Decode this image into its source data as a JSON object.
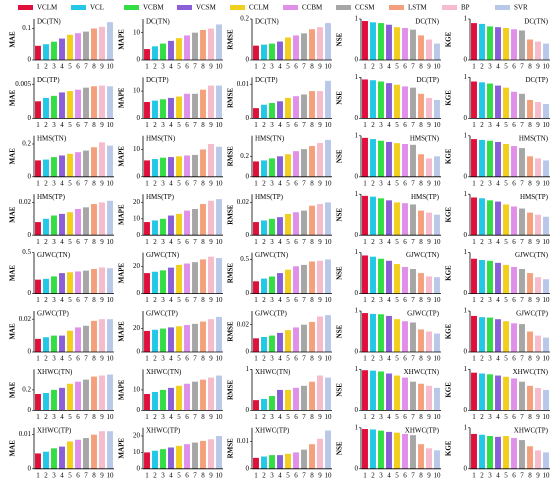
{
  "legend": [
    {
      "name": "VCLM",
      "color": "#e0103c"
    },
    {
      "name": "VCL",
      "color": "#22c8e6"
    },
    {
      "name": "VCBM",
      "color": "#33dd44"
    },
    {
      "name": "VCSM",
      "color": "#8a5fd8"
    },
    {
      "name": "CCLM",
      "color": "#f2cf1d"
    },
    {
      "name": "CCBM",
      "color": "#e090e8"
    },
    {
      "name": "CCSM",
      "color": "#a6a6a6"
    },
    {
      "name": "LSTM",
      "color": "#f4a07c"
    },
    {
      "name": "BP",
      "color": "#f6bccb"
    },
    {
      "name": "SVR",
      "color": "#b9c8e8"
    }
  ],
  "chart_data": [
    {
      "type": "bar",
      "title": "DC(TN)",
      "y_label": "MAE",
      "categories": [
        1,
        2,
        3,
        4,
        5,
        6,
        7,
        8,
        9,
        10
      ],
      "values": [
        0.045,
        0.05,
        0.058,
        0.068,
        0.08,
        0.085,
        0.09,
        0.1,
        0.105,
        0.12
      ],
      "ylim": [
        0,
        0.13
      ],
      "yticks": [
        0,
        0.1
      ]
    },
    {
      "type": "bar",
      "title": "DC(TN)",
      "y_label": "MAPE",
      "categories": [
        1,
        2,
        3,
        4,
        5,
        6,
        7,
        8,
        9,
        10
      ],
      "values": [
        4,
        5,
        6,
        7,
        8,
        9,
        10,
        11,
        11.5,
        13
      ],
      "ylim": [
        0,
        15
      ],
      "yticks": [
        0,
        10
      ]
    },
    {
      "type": "bar",
      "title": "DC(TN)",
      "y_label": "RMSE",
      "categories": [
        1,
        2,
        3,
        4,
        5,
        6,
        7,
        8,
        9,
        10
      ],
      "values": [
        0.07,
        0.075,
        0.08,
        0.09,
        0.11,
        0.12,
        0.13,
        0.15,
        0.16,
        0.18
      ],
      "ylim": [
        0,
        0.2
      ],
      "yticks": [
        0,
        0.2
      ]
    },
    {
      "type": "bar",
      "title": "DC(TN)",
      "y_label": "NSE",
      "categories": [
        1,
        2,
        3,
        4,
        5,
        6,
        7,
        8,
        9,
        10
      ],
      "values": [
        0.95,
        0.92,
        0.9,
        0.86,
        0.8,
        0.78,
        0.74,
        0.6,
        0.5,
        0.4
      ],
      "ylim": [
        0,
        1
      ],
      "yticks": [
        0,
        1
      ]
    },
    {
      "type": "bar",
      "title": "DC(TN)",
      "y_label": "KGE",
      "categories": [
        1,
        2,
        3,
        4,
        5,
        6,
        7,
        8,
        9,
        10
      ],
      "values": [
        0.9,
        0.88,
        0.82,
        0.8,
        0.78,
        0.75,
        0.72,
        0.5,
        0.45,
        0.4
      ],
      "ylim": [
        0,
        1
      ],
      "yticks": [
        0,
        1
      ]
    },
    {
      "type": "bar",
      "title": "DC(TP)",
      "y_label": "MAE",
      "categories": [
        1,
        2,
        3,
        4,
        5,
        6,
        7,
        8,
        9,
        10
      ],
      "values": [
        0.0025,
        0.003,
        0.0033,
        0.0038,
        0.004,
        0.0042,
        0.0045,
        0.0047,
        0.0048,
        0.0047
      ],
      "ylim": [
        0,
        0.006
      ],
      "yticks": [
        0,
        0.005
      ]
    },
    {
      "type": "bar",
      "title": "DC(TP)",
      "y_label": "MAPE",
      "categories": [
        1,
        2,
        3,
        4,
        5,
        6,
        7,
        8,
        9,
        10
      ],
      "values": [
        6,
        6.5,
        7,
        7.5,
        8,
        9,
        9,
        10.5,
        12,
        12
      ],
      "ylim": [
        0,
        15
      ],
      "yticks": [
        0,
        10
      ]
    },
    {
      "type": "bar",
      "title": "DC(TP)",
      "y_label": "RMSE",
      "categories": [
        1,
        2,
        3,
        4,
        5,
        6,
        7,
        8,
        9,
        10
      ],
      "values": [
        0.003,
        0.004,
        0.0045,
        0.005,
        0.006,
        0.0065,
        0.007,
        0.008,
        0.008,
        0.011
      ],
      "ylim": [
        0,
        0.012
      ],
      "yticks": [
        0,
        0.01
      ]
    },
    {
      "type": "bar",
      "title": "DC(TP)",
      "y_label": "NSE",
      "categories": [
        1,
        2,
        3,
        4,
        5,
        6,
        7,
        8,
        9,
        10
      ],
      "values": [
        0.95,
        0.93,
        0.9,
        0.86,
        0.82,
        0.78,
        0.75,
        0.6,
        0.5,
        0.45
      ],
      "ylim": [
        0,
        1
      ],
      "yticks": [
        0,
        1
      ]
    },
    {
      "type": "bar",
      "title": "DC(TP)",
      "y_label": "KGE",
      "categories": [
        1,
        2,
        3,
        4,
        5,
        6,
        7,
        8,
        9,
        10
      ],
      "values": [
        0.9,
        0.88,
        0.85,
        0.8,
        0.75,
        0.65,
        0.6,
        0.45,
        0.4,
        0.35
      ],
      "ylim": [
        0,
        1
      ],
      "yticks": [
        0,
        1
      ]
    },
    {
      "type": "bar",
      "title": "HMS(TN)",
      "y_label": "MAE",
      "categories": [
        1,
        2,
        3,
        4,
        5,
        6,
        7,
        8,
        9,
        10
      ],
      "values": [
        0.1,
        0.105,
        0.12,
        0.13,
        0.14,
        0.15,
        0.16,
        0.18,
        0.21,
        0.19
      ],
      "ylim": [
        0,
        0.25
      ],
      "yticks": [
        0,
        0.2
      ]
    },
    {
      "type": "bar",
      "title": "HMS(TN)",
      "y_label": "MAPE",
      "categories": [
        1,
        2,
        3,
        4,
        5,
        6,
        7,
        8,
        9,
        10
      ],
      "values": [
        6,
        6.5,
        7,
        7.2,
        7.5,
        7.8,
        8,
        10,
        12,
        11
      ],
      "ylim": [
        0,
        15
      ],
      "yticks": [
        0,
        10
      ]
    },
    {
      "type": "bar",
      "title": "HMS(TN)",
      "y_label": "RMSE",
      "categories": [
        1,
        2,
        3,
        4,
        5,
        6,
        7,
        8,
        9,
        10
      ],
      "values": [
        0.15,
        0.16,
        0.18,
        0.2,
        0.22,
        0.25,
        0.27,
        0.3,
        0.33,
        0.36
      ],
      "ylim": [
        0,
        0.4
      ],
      "yticks": [
        0,
        0.2
      ]
    },
    {
      "type": "bar",
      "title": "HMS(TN)",
      "y_label": "NSE",
      "categories": [
        1,
        2,
        3,
        4,
        5,
        6,
        7,
        8,
        9,
        10
      ],
      "values": [
        0.95,
        0.92,
        0.88,
        0.85,
        0.82,
        0.8,
        0.78,
        0.55,
        0.45,
        0.5
      ],
      "ylim": [
        0,
        1
      ],
      "yticks": [
        0,
        1
      ]
    },
    {
      "type": "bar",
      "title": "HMS(TN)",
      "y_label": "KGE",
      "categories": [
        1,
        2,
        3,
        4,
        5,
        6,
        7,
        8,
        9,
        10
      ],
      "values": [
        0.92,
        0.9,
        0.88,
        0.85,
        0.8,
        0.75,
        0.7,
        0.5,
        0.45,
        0.4
      ],
      "ylim": [
        0,
        1
      ],
      "yticks": [
        0,
        1
      ]
    },
    {
      "type": "bar",
      "title": "HMS(TP)",
      "y_label": "MAE",
      "categories": [
        1,
        2,
        3,
        4,
        5,
        6,
        7,
        8,
        9,
        10
      ],
      "values": [
        0.008,
        0.01,
        0.012,
        0.013,
        0.014,
        0.016,
        0.017,
        0.019,
        0.02,
        0.021
      ],
      "ylim": [
        0,
        0.025
      ],
      "yticks": [
        0,
        0.02
      ]
    },
    {
      "type": "bar",
      "title": "HMS(TP)",
      "y_label": "MAPE",
      "categories": [
        1,
        2,
        3,
        4,
        5,
        6,
        7,
        8,
        9,
        10
      ],
      "values": [
        8,
        9,
        10,
        12,
        13,
        15,
        16,
        19,
        21,
        22
      ],
      "ylim": [
        0,
        25
      ],
      "yticks": [
        0,
        10,
        20
      ]
    },
    {
      "type": "bar",
      "title": "HMS(TP)",
      "y_label": "RMSE",
      "categories": [
        1,
        2,
        3,
        4,
        5,
        6,
        7,
        8,
        9,
        10
      ],
      "values": [
        0.008,
        0.009,
        0.01,
        0.011,
        0.013,
        0.014,
        0.015,
        0.018,
        0.019,
        0.02
      ],
      "ylim": [
        0,
        0.025
      ],
      "yticks": [
        0,
        0.02
      ]
    },
    {
      "type": "bar",
      "title": "HMS(TP)",
      "y_label": "NSE",
      "categories": [
        1,
        2,
        3,
        4,
        5,
        6,
        7,
        8,
        9,
        10
      ],
      "values": [
        0.96,
        0.94,
        0.9,
        0.85,
        0.8,
        0.78,
        0.75,
        0.6,
        0.55,
        0.5
      ],
      "ylim": [
        0,
        1
      ],
      "yticks": [
        0,
        1
      ]
    },
    {
      "type": "bar",
      "title": "HMS(TP)",
      "y_label": "KGE",
      "categories": [
        1,
        2,
        3,
        4,
        5,
        6,
        7,
        8,
        9,
        10
      ],
      "values": [
        0.92,
        0.9,
        0.85,
        0.82,
        0.75,
        0.7,
        0.65,
        0.55,
        0.5,
        0.45
      ],
      "ylim": [
        0,
        1
      ],
      "yticks": [
        0,
        1
      ]
    },
    {
      "type": "bar",
      "title": "GJWC(TN)",
      "y_label": "MAE",
      "categories": [
        1,
        2,
        3,
        4,
        5,
        6,
        7,
        8,
        9,
        10
      ],
      "values": [
        0.17,
        0.18,
        0.21,
        0.25,
        0.26,
        0.27,
        0.28,
        0.3,
        0.32,
        0.31
      ],
      "ylim": [
        0,
        0.5
      ],
      "yticks": [
        0,
        0.5
      ]
    },
    {
      "type": "bar",
      "title": "GJWC(TN)",
      "y_label": "MAPE",
      "categories": [
        1,
        2,
        3,
        4,
        5,
        6,
        7,
        8,
        9,
        10
      ],
      "values": [
        15,
        16,
        17,
        19,
        21,
        22,
        23,
        25,
        27,
        26
      ],
      "ylim": [
        0,
        30
      ],
      "yticks": [
        0,
        20
      ]
    },
    {
      "type": "bar",
      "title": "GJWC(TN)",
      "y_label": "RMSE",
      "categories": [
        1,
        2,
        3,
        4,
        5,
        6,
        7,
        8,
        9,
        10
      ],
      "values": [
        0.18,
        0.22,
        0.25,
        0.3,
        0.35,
        0.4,
        0.42,
        0.47,
        0.48,
        0.5
      ],
      "ylim": [
        0,
        0.6
      ],
      "yticks": [
        0,
        0.5
      ]
    },
    {
      "type": "bar",
      "title": "GJWC(TN)",
      "y_label": "NSE",
      "categories": [
        1,
        2,
        3,
        4,
        5,
        6,
        7,
        8,
        9,
        10
      ],
      "values": [
        0.93,
        0.9,
        0.85,
        0.8,
        0.72,
        0.65,
        0.6,
        0.5,
        0.42,
        0.4
      ],
      "ylim": [
        0,
        1
      ],
      "yticks": [
        0,
        1
      ]
    },
    {
      "type": "bar",
      "title": "GJWC(TN)",
      "y_label": "KGE",
      "categories": [
        1,
        2,
        3,
        4,
        5,
        6,
        7,
        8,
        9,
        10
      ],
      "values": [
        0.85,
        0.82,
        0.8,
        0.75,
        0.7,
        0.65,
        0.6,
        0.5,
        0.4,
        0.35
      ],
      "ylim": [
        0,
        1
      ],
      "yticks": [
        0,
        1
      ]
    },
    {
      "type": "bar",
      "title": "GJWC(TP)",
      "y_label": "MAE",
      "categories": [
        1,
        2,
        3,
        4,
        5,
        6,
        7,
        8,
        9,
        10
      ],
      "values": [
        0.008,
        0.009,
        0.01,
        0.01,
        0.013,
        0.015,
        0.016,
        0.019,
        0.02,
        0.02
      ],
      "ylim": [
        0,
        0.025
      ],
      "yticks": [
        0,
        0.02
      ]
    },
    {
      "type": "bar",
      "title": "GJWC(TP)",
      "y_label": "MAPE",
      "categories": [
        1,
        2,
        3,
        4,
        5,
        6,
        7,
        8,
        9,
        10
      ],
      "values": [
        18,
        19,
        20,
        21,
        22,
        23,
        24,
        26,
        28,
        30
      ],
      "ylim": [
        0,
        35
      ],
      "yticks": [
        0,
        20
      ]
    },
    {
      "type": "bar",
      "title": "GJWC(TP)",
      "y_label": "RMSE",
      "categories": [
        1,
        2,
        3,
        4,
        5,
        6,
        7,
        8,
        9,
        10
      ],
      "values": [
        0.01,
        0.011,
        0.012,
        0.014,
        0.016,
        0.018,
        0.02,
        0.022,
        0.026,
        0.027
      ],
      "ylim": [
        0,
        0.03
      ],
      "yticks": [
        0,
        0.02
      ]
    },
    {
      "type": "bar",
      "title": "GJWC(TP)",
      "y_label": "NSE",
      "categories": [
        1,
        2,
        3,
        4,
        5,
        6,
        7,
        8,
        9,
        10
      ],
      "values": [
        0.95,
        0.93,
        0.92,
        0.88,
        0.8,
        0.75,
        0.72,
        0.55,
        0.5,
        0.45
      ],
      "ylim": [
        0,
        1
      ],
      "yticks": [
        0,
        1
      ]
    },
    {
      "type": "bar",
      "title": "GJWC(TP)",
      "y_label": "KGE",
      "categories": [
        1,
        2,
        3,
        4,
        5,
        6,
        7,
        8,
        9,
        10
      ],
      "values": [
        0.88,
        0.85,
        0.84,
        0.8,
        0.75,
        0.7,
        0.68,
        0.5,
        0.4,
        0.35
      ],
      "ylim": [
        0,
        1
      ],
      "yticks": [
        0,
        1
      ]
    },
    {
      "type": "bar",
      "title": "XHWC(TN)",
      "y_label": "MAE",
      "categories": [
        1,
        2,
        3,
        4,
        5,
        6,
        7,
        8,
        9,
        10
      ],
      "values": [
        0.16,
        0.17,
        0.2,
        0.22,
        0.26,
        0.28,
        0.3,
        0.33,
        0.34,
        0.35
      ],
      "ylim": [
        0,
        0.4
      ],
      "yticks": [
        0,
        0.2
      ]
    },
    {
      "type": "bar",
      "title": "XHWC(TN)",
      "y_label": "MAPE",
      "categories": [
        1,
        2,
        3,
        4,
        5,
        6,
        7,
        8,
        9,
        10
      ],
      "values": [
        8,
        9,
        10,
        11,
        12,
        13,
        14,
        15,
        16,
        17
      ],
      "ylim": [
        0,
        20
      ],
      "yticks": [
        0,
        10
      ]
    },
    {
      "type": "bar",
      "title": "XHWC(TN)",
      "y_label": "RMSE",
      "categories": [
        1,
        2,
        3,
        4,
        5,
        6,
        7,
        8,
        9,
        10
      ],
      "values": [
        0.25,
        0.28,
        0.35,
        0.5,
        0.5,
        0.55,
        0.6,
        0.7,
        0.85,
        0.8
      ],
      "ylim": [
        0,
        1
      ],
      "yticks": [
        0,
        1
      ]
    },
    {
      "type": "bar",
      "title": "XHWC(TN)",
      "y_label": "NSE",
      "categories": [
        1,
        2,
        3,
        4,
        5,
        6,
        7,
        8,
        9,
        10
      ],
      "values": [
        0.98,
        0.97,
        0.95,
        0.9,
        0.85,
        0.8,
        0.7,
        0.65,
        0.6,
        0.55
      ],
      "ylim": [
        0,
        1
      ],
      "yticks": [
        0,
        1
      ]
    },
    {
      "type": "bar",
      "title": "XHWC(TN)",
      "y_label": "KGE",
      "categories": [
        1,
        2,
        3,
        4,
        5,
        6,
        7,
        8,
        9,
        10
      ],
      "values": [
        0.92,
        0.9,
        0.88,
        0.85,
        0.82,
        0.78,
        0.7,
        0.6,
        0.55,
        0.5
      ],
      "ylim": [
        0,
        1
      ],
      "yticks": [
        0,
        1
      ]
    },
    {
      "type": "bar",
      "title": "XHWC(TP)",
      "y_label": "MAE",
      "categories": [
        1,
        2,
        3,
        4,
        5,
        6,
        7,
        8,
        9,
        10
      ],
      "values": [
        0.0045,
        0.005,
        0.006,
        0.0065,
        0.008,
        0.0085,
        0.009,
        0.01,
        0.011,
        0.011
      ],
      "ylim": [
        0,
        0.012
      ],
      "yticks": [
        0,
        0.01
      ]
    },
    {
      "type": "bar",
      "title": "XHWC(TP)",
      "y_label": "MAPE",
      "categories": [
        1,
        2,
        3,
        4,
        5,
        6,
        7,
        8,
        9,
        10
      ],
      "values": [
        10,
        11,
        12,
        13,
        14,
        15,
        16,
        17,
        18,
        20
      ],
      "ylim": [
        0,
        25
      ],
      "yticks": [
        0,
        10,
        20
      ]
    },
    {
      "type": "bar",
      "title": "XHWC(TP)",
      "y_label": "RMSE",
      "categories": [
        1,
        2,
        3,
        4,
        5,
        6,
        7,
        8,
        9,
        10
      ],
      "values": [
        0.004,
        0.0045,
        0.005,
        0.005,
        0.0055,
        0.006,
        0.007,
        0.009,
        0.011,
        0.014
      ],
      "ylim": [
        0,
        0.015
      ],
      "yticks": [
        0,
        0.01
      ]
    },
    {
      "type": "bar",
      "title": "XHWC(TP)",
      "y_label": "NSE",
      "categories": [
        1,
        2,
        3,
        4,
        5,
        6,
        7,
        8,
        9,
        10
      ],
      "values": [
        0.97,
        0.96,
        0.93,
        0.9,
        0.88,
        0.85,
        0.82,
        0.6,
        0.5,
        0.45
      ],
      "ylim": [
        0,
        1
      ],
      "yticks": [
        0,
        1
      ]
    },
    {
      "type": "bar",
      "title": "XHWC(TP)",
      "y_label": "KGE",
      "categories": [
        1,
        2,
        3,
        4,
        5,
        6,
        7,
        8,
        9,
        10
      ],
      "values": [
        0.85,
        0.83,
        0.8,
        0.78,
        0.8,
        0.75,
        0.7,
        0.55,
        0.45,
        0.4
      ],
      "ylim": [
        0,
        1
      ],
      "yticks": [
        0,
        1
      ]
    }
  ]
}
